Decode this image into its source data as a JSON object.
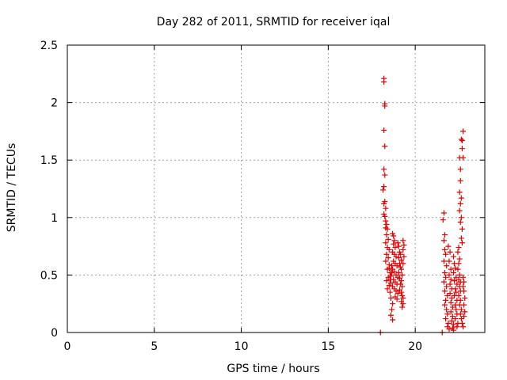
{
  "chart_data": {
    "type": "scatter",
    "title": "Day 282 of 2011, SRMTID for receiver iqal",
    "xlabel": "GPS time / hours",
    "ylabel": "SRMTID / TECUs",
    "xlim": [
      0,
      24
    ],
    "ylim": [
      0,
      2.5
    ],
    "xticks": [
      0,
      5,
      10,
      15,
      20
    ],
    "xtick_labels": [
      "0",
      "5",
      "10",
      "15",
      "20"
    ],
    "yticks": [
      0,
      0.5,
      1,
      1.5,
      2,
      2.5
    ],
    "ytick_labels": [
      "0",
      "0.5",
      "1",
      "1.5",
      "2",
      "2.5"
    ],
    "grid": true,
    "marker": "+",
    "color": "#e00000",
    "series": [
      {
        "name": "SRMTID",
        "points": [
          [
            18.2,
            2.21
          ],
          [
            18.2,
            2.18
          ],
          [
            18.25,
            1.99
          ],
          [
            18.25,
            1.97
          ],
          [
            18.2,
            1.76
          ],
          [
            18.25,
            1.62
          ],
          [
            18.2,
            1.42
          ],
          [
            18.25,
            1.37
          ],
          [
            18.2,
            1.27
          ],
          [
            18.15,
            1.24
          ],
          [
            18.25,
            1.14
          ],
          [
            18.2,
            1.12
          ],
          [
            18.3,
            1.08
          ],
          [
            18.2,
            1.03
          ],
          [
            18.25,
            1.01
          ],
          [
            18.3,
            0.97
          ],
          [
            18.35,
            0.94
          ],
          [
            18.3,
            0.91
          ],
          [
            18.4,
            0.9
          ],
          [
            18.35,
            0.85
          ],
          [
            18.45,
            0.81
          ],
          [
            18.3,
            0.78
          ],
          [
            18.4,
            0.74
          ],
          [
            18.5,
            0.72
          ],
          [
            18.35,
            0.68
          ],
          [
            18.45,
            0.65
          ],
          [
            18.3,
            0.62
          ],
          [
            18.5,
            0.59
          ],
          [
            18.4,
            0.55
          ],
          [
            18.55,
            0.52
          ],
          [
            18.45,
            0.48
          ],
          [
            18.35,
            0.45
          ],
          [
            18.6,
            0.43
          ],
          [
            18.5,
            0.41
          ],
          [
            18.4,
            0.38
          ],
          [
            18.55,
            0.35
          ],
          [
            18.6,
            0.3
          ],
          [
            18.7,
            0.25
          ],
          [
            18.65,
            0.2
          ],
          [
            18.6,
            0.15
          ],
          [
            18.7,
            0.11
          ],
          [
            18.7,
            0.86
          ],
          [
            18.75,
            0.84
          ],
          [
            18.8,
            0.8
          ],
          [
            18.75,
            0.77
          ],
          [
            18.85,
            0.74
          ],
          [
            18.7,
            0.7
          ],
          [
            18.8,
            0.68
          ],
          [
            18.9,
            0.66
          ],
          [
            18.75,
            0.62
          ],
          [
            18.85,
            0.6
          ],
          [
            18.95,
            0.58
          ],
          [
            18.7,
            0.55
          ],
          [
            18.8,
            0.53
          ],
          [
            18.9,
            0.5
          ],
          [
            19.0,
            0.48
          ],
          [
            18.75,
            0.46
          ],
          [
            18.85,
            0.44
          ],
          [
            18.95,
            0.42
          ],
          [
            18.7,
            0.4
          ],
          [
            18.8,
            0.38
          ],
          [
            18.9,
            0.36
          ],
          [
            19.0,
            0.34
          ],
          [
            18.85,
            0.31
          ],
          [
            18.95,
            0.29
          ],
          [
            19.0,
            0.78
          ],
          [
            19.05,
            0.75
          ],
          [
            19.1,
            0.7
          ],
          [
            19.15,
            0.68
          ],
          [
            19.05,
            0.65
          ],
          [
            19.2,
            0.63
          ],
          [
            19.1,
            0.6
          ],
          [
            19.15,
            0.57
          ],
          [
            19.2,
            0.55
          ],
          [
            19.05,
            0.52
          ],
          [
            19.25,
            0.5
          ],
          [
            19.1,
            0.47
          ],
          [
            19.2,
            0.45
          ],
          [
            19.15,
            0.42
          ],
          [
            19.25,
            0.4
          ],
          [
            19.1,
            0.37
          ],
          [
            19.2,
            0.35
          ],
          [
            19.25,
            0.32
          ],
          [
            19.3,
            0.3
          ],
          [
            19.2,
            0.27
          ],
          [
            19.3,
            0.25
          ],
          [
            19.25,
            0.22
          ],
          [
            19.3,
            0.8
          ],
          [
            19.35,
            0.76
          ],
          [
            19.3,
            0.72
          ],
          [
            19.35,
            0.66
          ],
          [
            19.3,
            0.6
          ],
          [
            18.55,
            0.46
          ],
          [
            18.6,
            0.49
          ],
          [
            18.65,
            0.52
          ],
          [
            18.5,
            0.56
          ],
          [
            18.65,
            0.58
          ],
          [
            18.0,
            0.0
          ],
          [
            21.65,
            1.04
          ],
          [
            21.6,
            0.98
          ],
          [
            21.7,
            0.85
          ],
          [
            21.65,
            0.8
          ],
          [
            21.7,
            0.72
          ],
          [
            21.75,
            0.68
          ],
          [
            21.65,
            0.62
          ],
          [
            21.8,
            0.58
          ],
          [
            21.7,
            0.52
          ],
          [
            21.75,
            0.48
          ],
          [
            21.65,
            0.44
          ],
          [
            21.8,
            0.4
          ],
          [
            21.7,
            0.36
          ],
          [
            21.85,
            0.32
          ],
          [
            21.75,
            0.28
          ],
          [
            21.7,
            0.24
          ],
          [
            21.8,
            0.2
          ],
          [
            21.85,
            0.16
          ],
          [
            21.75,
            0.12
          ],
          [
            21.9,
            0.08
          ],
          [
            21.85,
            0.05
          ],
          [
            21.95,
            0.03
          ],
          [
            21.9,
            0.75
          ],
          [
            22.0,
            0.7
          ],
          [
            21.95,
            0.62
          ],
          [
            22.05,
            0.55
          ],
          [
            21.95,
            0.5
          ],
          [
            22.05,
            0.46
          ],
          [
            22.0,
            0.42
          ],
          [
            22.1,
            0.38
          ],
          [
            22.0,
            0.34
          ],
          [
            22.1,
            0.3
          ],
          [
            22.05,
            0.26
          ],
          [
            22.15,
            0.22
          ],
          [
            22.05,
            0.18
          ],
          [
            22.15,
            0.14
          ],
          [
            22.1,
            0.1
          ],
          [
            22.2,
            0.07
          ],
          [
            22.15,
            0.04
          ],
          [
            22.2,
            0.02
          ],
          [
            22.2,
            0.66
          ],
          [
            22.25,
            0.6
          ],
          [
            22.3,
            0.56
          ],
          [
            22.2,
            0.52
          ],
          [
            22.35,
            0.48
          ],
          [
            22.25,
            0.45
          ],
          [
            22.4,
            0.42
          ],
          [
            22.3,
            0.38
          ],
          [
            22.35,
            0.35
          ],
          [
            22.25,
            0.32
          ],
          [
            22.4,
            0.28
          ],
          [
            22.3,
            0.24
          ],
          [
            22.35,
            0.2
          ],
          [
            22.4,
            0.16
          ],
          [
            22.3,
            0.12
          ],
          [
            22.45,
            0.08
          ],
          [
            22.4,
            0.05
          ],
          [
            22.5,
            0.74
          ],
          [
            22.45,
            0.7
          ],
          [
            22.55,
            0.64
          ],
          [
            22.5,
            0.6
          ],
          [
            22.45,
            0.55
          ],
          [
            22.55,
            0.5
          ],
          [
            22.5,
            0.46
          ],
          [
            22.6,
            0.44
          ],
          [
            22.55,
            0.4
          ],
          [
            22.6,
            0.36
          ],
          [
            22.5,
            0.32
          ],
          [
            22.6,
            0.28
          ],
          [
            22.55,
            0.24
          ],
          [
            22.65,
            0.2
          ],
          [
            22.6,
            0.16
          ],
          [
            22.65,
            0.12
          ],
          [
            22.7,
            0.08
          ],
          [
            22.75,
            0.05
          ],
          [
            22.55,
            1.52
          ],
          [
            22.6,
            1.42
          ],
          [
            22.6,
            1.32
          ],
          [
            22.55,
            1.22
          ],
          [
            22.65,
            1.17
          ],
          [
            22.6,
            1.12
          ],
          [
            22.55,
            1.06
          ],
          [
            22.65,
            1.0
          ],
          [
            22.6,
            0.96
          ],
          [
            22.7,
            0.9
          ],
          [
            22.65,
            0.82
          ],
          [
            22.7,
            0.78
          ],
          [
            22.65,
            1.68
          ],
          [
            22.7,
            1.67
          ],
          [
            22.75,
            1.75
          ],
          [
            22.7,
            1.6
          ],
          [
            22.75,
            1.52
          ],
          [
            22.75,
            0.48
          ],
          [
            22.8,
            0.44
          ],
          [
            22.75,
            0.4
          ],
          [
            22.8,
            0.36
          ],
          [
            22.85,
            0.3
          ],
          [
            22.8,
            0.24
          ],
          [
            22.85,
            0.18
          ],
          [
            22.8,
            0.14
          ],
          [
            21.55,
            0.0
          ]
        ]
      }
    ]
  }
}
